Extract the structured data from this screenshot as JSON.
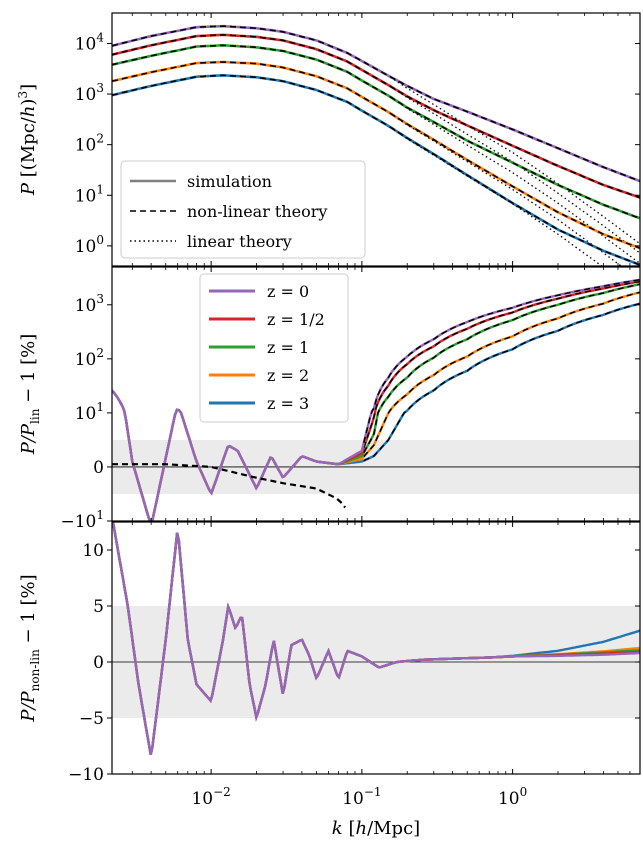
{
  "colors": {
    "z0": "#9467bd",
    "z_half": "#d62728",
    "z1": "#2ca02c",
    "z2": "#ff7f0e",
    "z3": "#1f77b4",
    "band": "#ebebeb",
    "legend_line": "#808080",
    "frame": "#000000"
  },
  "shared_x_axis": {
    "label": "k [h/Mpc]",
    "scale": "log",
    "range": [
      0.0022,
      7.0
    ],
    "ticks": [
      {
        "value": 0.01,
        "base": "10",
        "exp": "−2"
      },
      {
        "value": 0.1,
        "base": "10",
        "exp": "−1"
      },
      {
        "value": 1,
        "base": "10",
        "exp": "0"
      }
    ]
  },
  "chart_data": [
    {
      "type": "line",
      "ylabel": "P [(Mpc/h)³]",
      "yscale": "log",
      "ylim": [
        0.4,
        40000
      ],
      "yticks": [
        {
          "value": 1,
          "base": "10",
          "exp": "0"
        },
        {
          "value": 10,
          "base": "10",
          "exp": "1"
        },
        {
          "value": 100,
          "base": "10",
          "exp": "2"
        },
        {
          "value": 1000,
          "base": "10",
          "exp": "3"
        },
        {
          "value": 10000,
          "base": "10",
          "exp": "4"
        }
      ],
      "legend": {
        "placement": "lower-left",
        "entries": [
          {
            "label": "simulation",
            "style": "solid"
          },
          {
            "label": "non-linear theory",
            "style": "dashed"
          },
          {
            "label": "linear theory",
            "style": "dotted"
          }
        ]
      },
      "series": [
        {
          "z": 0,
          "color_key": "z0",
          "k": [
            0.0022,
            0.004,
            0.008,
            0.012,
            0.02,
            0.03,
            0.05,
            0.08,
            0.1,
            0.15,
            0.2,
            0.3,
            0.5,
            1,
            2,
            4,
            7
          ],
          "P_sim": [
            9000,
            14000,
            21000,
            22000,
            20000,
            17000,
            11500,
            6500,
            4500,
            2300,
            1450,
            800,
            450,
            200,
            85,
            36,
            19
          ],
          "P_lin": [
            9000,
            14000,
            21000,
            22000,
            20000,
            17000,
            11500,
            6500,
            4500,
            2300,
            1300,
            620,
            240,
            70,
            17,
            3.8,
            1.1
          ]
        },
        {
          "z": 0.5,
          "color_key": "z_half",
          "k": [
            0.0022,
            0.004,
            0.008,
            0.012,
            0.02,
            0.03,
            0.05,
            0.08,
            0.1,
            0.15,
            0.2,
            0.3,
            0.5,
            1,
            2,
            4,
            7
          ],
          "P_sim": [
            6000,
            9200,
            14000,
            14800,
            13500,
            11500,
            7700,
            4400,
            3000,
            1500,
            900,
            480,
            240,
            95,
            38,
            16,
            9
          ],
          "P_lin": [
            6000,
            9200,
            14000,
            14800,
            13500,
            11500,
            7700,
            4400,
            3000,
            1500,
            850,
            410,
            160,
            46,
            11,
            2.5,
            0.72
          ]
        },
        {
          "z": 1,
          "color_key": "z1",
          "k": [
            0.0022,
            0.004,
            0.008,
            0.012,
            0.02,
            0.03,
            0.05,
            0.08,
            0.1,
            0.15,
            0.2,
            0.3,
            0.5,
            1,
            2,
            4,
            7
          ],
          "P_sim": [
            3800,
            5700,
            8700,
            9200,
            8400,
            7100,
            4800,
            2750,
            1850,
            930,
            540,
            280,
            120,
            44,
            16,
            6.5,
            3.5
          ],
          "P_lin": [
            3800,
            5700,
            8700,
            9200,
            8400,
            7100,
            4800,
            2750,
            1850,
            930,
            520,
            250,
            98,
            28,
            7,
            1.55,
            0.45
          ]
        },
        {
          "z": 2,
          "color_key": "z2",
          "k": [
            0.0022,
            0.004,
            0.008,
            0.012,
            0.02,
            0.03,
            0.05,
            0.08,
            0.1,
            0.15,
            0.2,
            0.3,
            0.5,
            1,
            2,
            4,
            7
          ],
          "P_sim": [
            1800,
            2700,
            4100,
            4300,
            4000,
            3350,
            2250,
            1300,
            880,
            440,
            255,
            125,
            50,
            15,
            4.6,
            1.7,
            0.9
          ],
          "P_lin": [
            1800,
            2700,
            4100,
            4300,
            4000,
            3350,
            2250,
            1300,
            880,
            440,
            245,
            118,
            46,
            13,
            3.3,
            0.73,
            0.21
          ]
        },
        {
          "z": 3,
          "color_key": "z3",
          "k": [
            0.0022,
            0.004,
            0.008,
            0.012,
            0.02,
            0.03,
            0.05,
            0.08,
            0.1,
            0.15,
            0.2,
            0.3,
            0.5,
            1,
            2,
            4,
            7
          ],
          "P_sim": [
            950,
            1450,
            2200,
            2350,
            2150,
            1800,
            1200,
            700,
            470,
            235,
            135,
            65,
            25,
            7,
            2.1,
            0.8,
            0.42
          ],
          "P_lin": [
            950,
            1450,
            2200,
            2350,
            2150,
            1800,
            1200,
            700,
            470,
            235,
            130,
            62,
            24,
            6.8,
            1.7,
            0.38,
            0.11
          ]
        }
      ]
    },
    {
      "type": "line",
      "ylabel": "P/P_lin − 1 [%]",
      "yscale": "symlog",
      "ylim": [
        -10,
        5000
      ],
      "band": [
        -5,
        5
      ],
      "yticks": [
        {
          "value": -10,
          "base": "−10",
          "exp": "1"
        },
        {
          "value": 0,
          "label": "0"
        },
        {
          "value": 10,
          "base": "10",
          "exp": "1"
        },
        {
          "value": 100,
          "base": "10",
          "exp": "2"
        },
        {
          "value": 1000,
          "base": "10",
          "exp": "3"
        }
      ],
      "legend": {
        "placement": "upper-left",
        "entries": [
          {
            "label": "z = 0",
            "color_key": "z0"
          },
          {
            "label": "z = 1/2",
            "color_key": "z_half"
          },
          {
            "label": "z = 1",
            "color_key": "z1"
          },
          {
            "label": "z = 2",
            "color_key": "z2"
          },
          {
            "label": "z = 3",
            "color_key": "z3"
          }
        ]
      },
      "series": [
        {
          "z": 0,
          "color_key": "z0",
          "k": [
            0.0022,
            0.003,
            0.004,
            0.006,
            0.008,
            0.01,
            0.013,
            0.015,
            0.02,
            0.025,
            0.03,
            0.04,
            0.05,
            0.07,
            0.1,
            0.12,
            0.15,
            0.2,
            0.3,
            0.5,
            1,
            2,
            4,
            7
          ],
          "v": [
            26,
            1,
            -11,
            12,
            1,
            -5,
            4,
            3,
            -4,
            2,
            -2,
            2,
            1,
            0.5,
            3,
            12,
            45,
            110,
            230,
            480,
            880,
            1500,
            2200,
            2900
          ]
        },
        {
          "z": 0.5,
          "color_key": "z_half",
          "k": [
            0.0022,
            0.003,
            0.004,
            0.006,
            0.008,
            0.01,
            0.013,
            0.015,
            0.02,
            0.025,
            0.03,
            0.04,
            0.05,
            0.07,
            0.1,
            0.12,
            0.15,
            0.2,
            0.3,
            0.5,
            1,
            2,
            4,
            7
          ],
          "v": [
            26,
            1,
            -11,
            12,
            1,
            -5,
            4,
            3,
            -4,
            2,
            -2,
            2,
            1,
            0.5,
            2.5,
            9,
            32,
            80,
            170,
            360,
            720,
            1300,
            2000,
            2700
          ]
        },
        {
          "z": 1,
          "color_key": "z1",
          "k": [
            0.0022,
            0.003,
            0.004,
            0.006,
            0.008,
            0.01,
            0.013,
            0.015,
            0.02,
            0.025,
            0.03,
            0.04,
            0.05,
            0.07,
            0.1,
            0.12,
            0.15,
            0.2,
            0.3,
            0.5,
            1,
            2,
            4,
            7
          ],
          "v": [
            26,
            1,
            -11,
            12,
            1,
            -5,
            4,
            3,
            -4,
            2,
            -2,
            2,
            1,
            0.5,
            2,
            6,
            20,
            45,
            105,
            230,
            520,
            1000,
            1650,
            2400
          ]
        },
        {
          "z": 2,
          "color_key": "z2",
          "k": [
            0.0022,
            0.003,
            0.004,
            0.006,
            0.008,
            0.01,
            0.013,
            0.015,
            0.02,
            0.025,
            0.03,
            0.04,
            0.05,
            0.07,
            0.1,
            0.12,
            0.15,
            0.2,
            0.3,
            0.5,
            1,
            2,
            4,
            7
          ],
          "v": [
            26,
            1,
            -11,
            12,
            1,
            -5,
            4,
            3,
            -4,
            2,
            -2,
            2,
            1,
            0.5,
            1.5,
            4,
            10,
            22,
            50,
            110,
            260,
            560,
            1050,
            1700
          ]
        },
        {
          "z": 3,
          "color_key": "z3",
          "k": [
            0.0022,
            0.003,
            0.004,
            0.006,
            0.008,
            0.01,
            0.013,
            0.015,
            0.02,
            0.025,
            0.03,
            0.04,
            0.05,
            0.07,
            0.1,
            0.12,
            0.15,
            0.2,
            0.3,
            0.5,
            1,
            2,
            4,
            7
          ],
          "v": [
            26,
            1,
            -11,
            12,
            1,
            -5,
            4,
            3,
            -4,
            2,
            -2,
            2,
            1,
            0.5,
            1,
            2,
            5,
            11,
            26,
            60,
            150,
            330,
            650,
            1050
          ]
        }
      ],
      "theory": {
        "k": [
          0.0022,
          0.005,
          0.01,
          0.02,
          0.03,
          0.05,
          0.07,
          0.08
        ],
        "v": [
          0.5,
          0.5,
          0,
          -2,
          -3,
          -4,
          -6,
          -8
        ]
      }
    },
    {
      "type": "line",
      "ylabel": "P/P_non-lin − 1 [%]",
      "yscale": "linear",
      "ylim": [
        -10,
        12.5
      ],
      "band": [
        -5,
        5
      ],
      "yticks": [
        {
          "value": -10,
          "label": "−10"
        },
        {
          "value": -5,
          "label": "−5"
        },
        {
          "value": 0,
          "label": "0"
        },
        {
          "value": 5,
          "label": "5"
        },
        {
          "value": 10,
          "label": "10"
        }
      ],
      "base_curve": {
        "k": [
          0.0022,
          0.0028,
          0.0033,
          0.004,
          0.005,
          0.006,
          0.007,
          0.008,
          0.01,
          0.012,
          0.013,
          0.0145,
          0.016,
          0.018,
          0.02,
          0.023,
          0.026,
          0.03,
          0.034,
          0.04,
          0.045,
          0.05,
          0.06,
          0.07,
          0.08,
          0.1,
          0.13,
          0.17,
          0.25,
          0.4,
          0.7,
          1,
          2,
          4,
          7
        ],
        "v": [
          13,
          5,
          -2,
          -8.5,
          2,
          12,
          2,
          -2,
          -3.5,
          2,
          5,
          3,
          4.2,
          -2,
          -5,
          -2,
          2,
          -3,
          1.5,
          2,
          0.5,
          -1.5,
          1,
          -1.5,
          1,
          0.5,
          -0.5,
          0,
          0.2,
          0.3,
          0.4,
          0.5,
          0.6,
          0.7,
          0.8
        ]
      },
      "series": [
        {
          "z": 3,
          "color_key": "z3",
          "tail_k": [
            0.7,
            1,
            2,
            4,
            7
          ],
          "tail_v": [
            0.4,
            0.55,
            1.0,
            1.8,
            2.8
          ]
        },
        {
          "z": 2,
          "color_key": "z2",
          "tail_k": [
            0.7,
            1,
            2,
            4,
            7
          ],
          "tail_v": [
            0.4,
            0.5,
            0.7,
            0.95,
            1.25
          ]
        },
        {
          "z": 1,
          "color_key": "z1",
          "tail_k": [
            0.7,
            1,
            2,
            4,
            7
          ],
          "tail_v": [
            0.4,
            0.5,
            0.65,
            0.85,
            1.05
          ]
        },
        {
          "z": 0.5,
          "color_key": "z_half",
          "tail_k": [
            0.7,
            1,
            2,
            4,
            7
          ],
          "tail_v": [
            0.4,
            0.5,
            0.6,
            0.75,
            0.9
          ]
        },
        {
          "z": 0,
          "color_key": "z0",
          "tail_k": [
            0.7,
            1,
            2,
            4,
            7
          ],
          "tail_v": [
            0.4,
            0.5,
            0.55,
            0.65,
            0.8
          ]
        }
      ]
    }
  ]
}
